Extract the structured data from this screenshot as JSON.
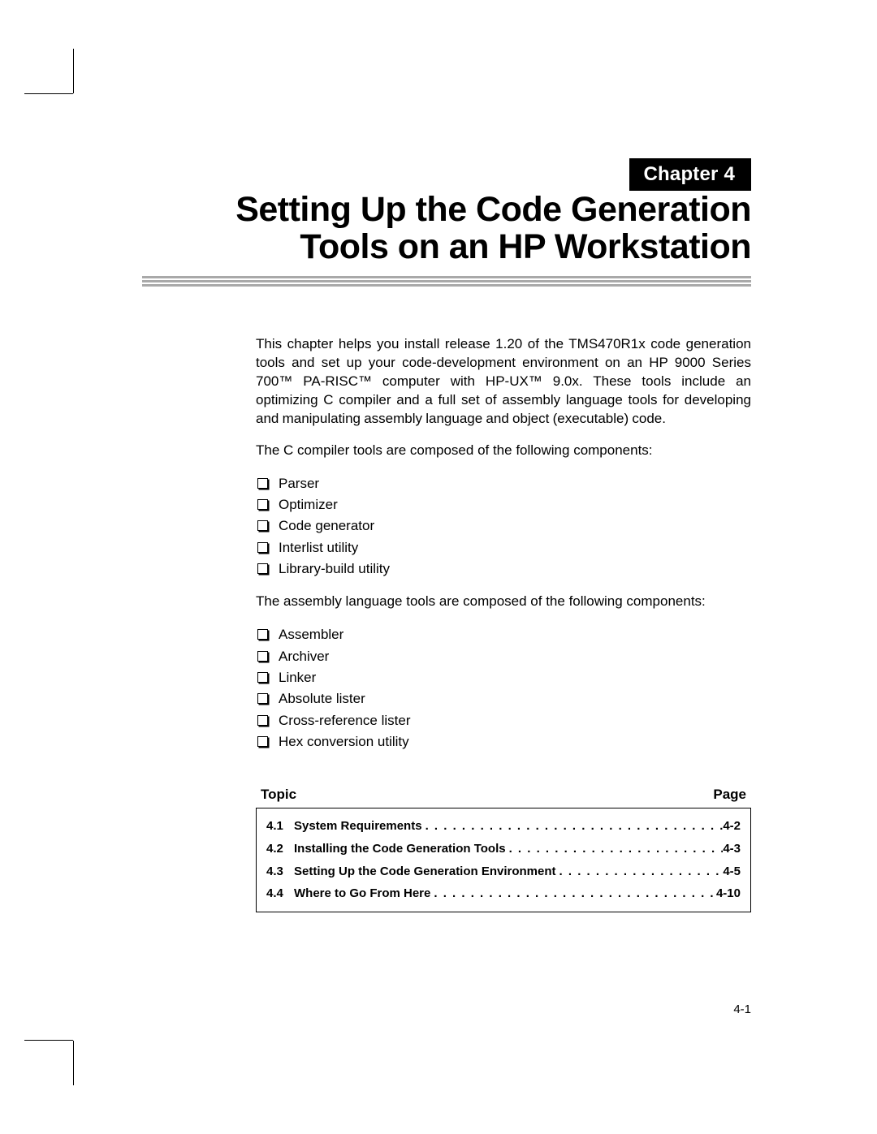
{
  "chapter_label": "Chapter 4",
  "title_line1": "Setting Up the Code Generation",
  "title_line2": "Tools on an HP Workstation",
  "intro_paragraph": "This chapter helps you install release 1.20 of the TMS470R1x code generation tools and set up your code-development environment on an HP 9000 Series 700™ PA-RISC™ computer with HP-UX™ 9.0x. These tools include an optimizing C compiler and a full set of assembly language tools for developing and manipulating assembly language and object (executable) code.",
  "compiler_intro": "The C compiler tools are composed of the following components:",
  "compiler_components": [
    "Parser",
    "Optimizer",
    "Code generator",
    "Interlist utility",
    "Library-build utility"
  ],
  "asm_intro": "The assembly language tools are composed of the following components:",
  "asm_components": [
    "Assembler",
    "Archiver",
    "Linker",
    "Absolute lister",
    "Cross-reference lister",
    "Hex conversion utility"
  ],
  "toc_header_left": "Topic",
  "toc_header_right": "Page",
  "toc": [
    {
      "num": "4.1",
      "title": "System Requirements",
      "page": "4-2"
    },
    {
      "num": "4.2",
      "title": "Installing the Code Generation Tools",
      "page": "4-3"
    },
    {
      "num": "4.3",
      "title": "Setting Up the Code Generation Environment",
      "page": "4-5"
    },
    {
      "num": "4.4",
      "title": "Where to Go From Here",
      "page": "4-10"
    }
  ],
  "page_number": "4-1"
}
